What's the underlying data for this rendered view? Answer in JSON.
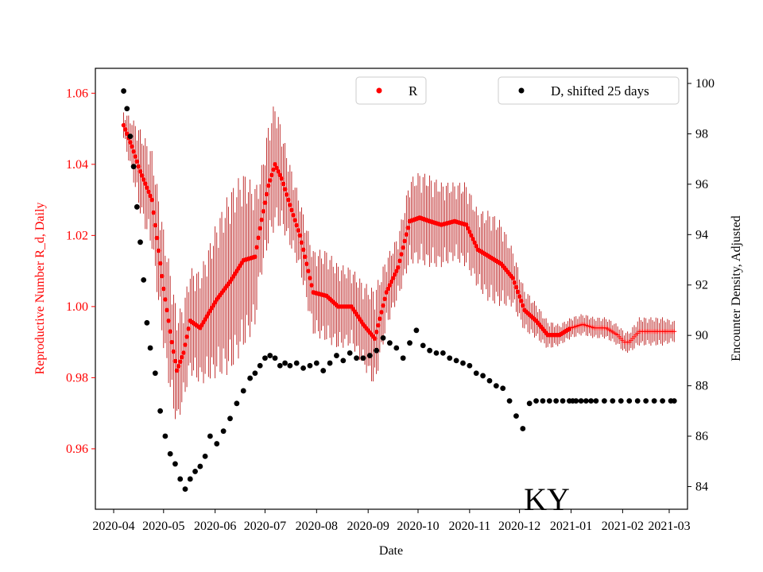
{
  "chart_data": {
    "type": "scatter",
    "state_label": "KY",
    "xlabel": "Date",
    "ylabel_left": "Reproductive Number R_d, Daily",
    "ylabel_right": "Encounter Density, Adjusted",
    "x_tick_labels": [
      "2020-04",
      "2020-05",
      "2020-06",
      "2020-07",
      "2020-08",
      "2020-09",
      "2020-10",
      "2020-11",
      "2020-12",
      "2021-01",
      "2021-02",
      "2021-03"
    ],
    "y_left_ticks": [
      0.96,
      0.98,
      1.0,
      1.02,
      1.04,
      1.06
    ],
    "y_left_tick_labels": [
      "0.96",
      "0.98",
      "1.00",
      "1.02",
      "1.04",
      "1.06"
    ],
    "y_left_range": [
      0.943,
      1.067
    ],
    "y_right_ticks": [
      84,
      86,
      88,
      90,
      92,
      94,
      96,
      98,
      100
    ],
    "y_right_tick_labels": [
      "84",
      "86",
      "88",
      "90",
      "92",
      "94",
      "96",
      "98",
      "100"
    ],
    "y_right_range": [
      83.1,
      100.6
    ],
    "x_range_days": [
      -11,
      345
    ],
    "colors": {
      "R": "#ff0000",
      "R_err": "#b20000",
      "D": "#000000",
      "left_axis": "#ff0000",
      "right_axis": "#000000"
    },
    "legend": {
      "R": "R",
      "D": "D, shifted 25 days",
      "R_position": "top-center",
      "D_position": "top-right"
    },
    "series": [
      {
        "name": "R",
        "axis": "left",
        "x_days": [
          6,
          11,
          16,
          23,
          30,
          35,
          38,
          42,
          46,
          52,
          62,
          70,
          78,
          85,
          88,
          93,
          97,
          101,
          105,
          112,
          120,
          128,
          135,
          143,
          150,
          157,
          164,
          171,
          178,
          184,
          190,
          197,
          205,
          212,
          219,
          226,
          233,
          240,
          247,
          254,
          261,
          268,
          275,
          282,
          289,
          296,
          303,
          307,
          310,
          316,
          323,
          330,
          337
        ],
        "y": [
          1.051,
          1.045,
          1.038,
          1.03,
          1.005,
          0.99,
          0.982,
          0.987,
          0.996,
          0.994,
          1.002,
          1.007,
          1.013,
          1.014,
          1.022,
          1.034,
          1.04,
          1.036,
          1.03,
          1.02,
          1.004,
          1.003,
          1.0,
          1.0,
          0.995,
          0.991,
          1.004,
          1.011,
          1.024,
          1.025,
          1.024,
          1.023,
          1.024,
          1.023,
          1.016,
          1.014,
          1.012,
          1.008,
          0.999,
          0.996,
          0.992,
          0.992,
          0.994,
          0.995,
          0.994,
          0.994,
          0.992,
          0.99,
          0.99,
          0.993,
          0.993,
          0.993,
          0.993
        ],
        "err_halfwidth": [
          0.004,
          0.008,
          0.012,
          0.014,
          0.017,
          0.018,
          0.016,
          0.014,
          0.015,
          0.016,
          0.022,
          0.026,
          0.025,
          0.02,
          0.015,
          0.017,
          0.018,
          0.014,
          0.012,
          0.01,
          0.012,
          0.013,
          0.012,
          0.011,
          0.012,
          0.014,
          0.01,
          0.009,
          0.012,
          0.013,
          0.013,
          0.012,
          0.011,
          0.012,
          0.011,
          0.013,
          0.012,
          0.008,
          0.006,
          0.005,
          0.004,
          0.003,
          0.003,
          0.003,
          0.003,
          0.003,
          0.003,
          0.003,
          0.003,
          0.004,
          0.004,
          0.004,
          0.003
        ]
      },
      {
        "name": "D, shifted 25 days",
        "axis": "right",
        "x_days": [
          6,
          8,
          10,
          12,
          14,
          16,
          18,
          20,
          22,
          25,
          28,
          31,
          34,
          37,
          40,
          43,
          46,
          49,
          52,
          55,
          58,
          62,
          66,
          70,
          74,
          78,
          82,
          85,
          88,
          91,
          94,
          97,
          100,
          103,
          106,
          110,
          114,
          118,
          122,
          126,
          130,
          134,
          138,
          142,
          146,
          150,
          154,
          158,
          162,
          166,
          170,
          174,
          178,
          182,
          186,
          190,
          194,
          198,
          202,
          206,
          210,
          214,
          218,
          222,
          226,
          230,
          234,
          238,
          242,
          246,
          250,
          254,
          258,
          262,
          266,
          270,
          274,
          276,
          278,
          281,
          284,
          287,
          290,
          295,
          300,
          305,
          310,
          315,
          320,
          325,
          330,
          335,
          337
        ],
        "y": [
          99.7,
          99.0,
          97.9,
          96.7,
          95.1,
          93.7,
          92.2,
          90.5,
          89.5,
          88.5,
          87.0,
          86.0,
          85.3,
          84.9,
          84.3,
          83.9,
          84.3,
          84.6,
          84.8,
          85.2,
          86.0,
          85.7,
          86.2,
          86.7,
          87.3,
          87.8,
          88.3,
          88.5,
          88.8,
          89.1,
          89.2,
          89.1,
          88.8,
          88.9,
          88.8,
          88.9,
          88.7,
          88.8,
          88.9,
          88.6,
          88.9,
          89.2,
          89.0,
          89.3,
          89.1,
          89.1,
          89.2,
          89.4,
          89.9,
          89.7,
          89.5,
          89.1,
          89.7,
          90.2,
          89.6,
          89.4,
          89.3,
          89.3,
          89.1,
          89.0,
          88.9,
          88.8,
          88.5,
          88.4,
          88.2,
          88.0,
          87.9,
          87.4,
          86.8,
          86.3,
          87.3,
          87.4,
          87.4,
          87.4,
          87.4,
          87.4,
          87.4,
          87.4,
          87.4,
          87.4,
          87.4,
          87.4,
          87.4,
          87.4,
          87.4,
          87.4,
          87.4,
          87.4,
          87.4,
          87.4,
          87.4,
          87.4,
          87.4
        ]
      }
    ]
  }
}
